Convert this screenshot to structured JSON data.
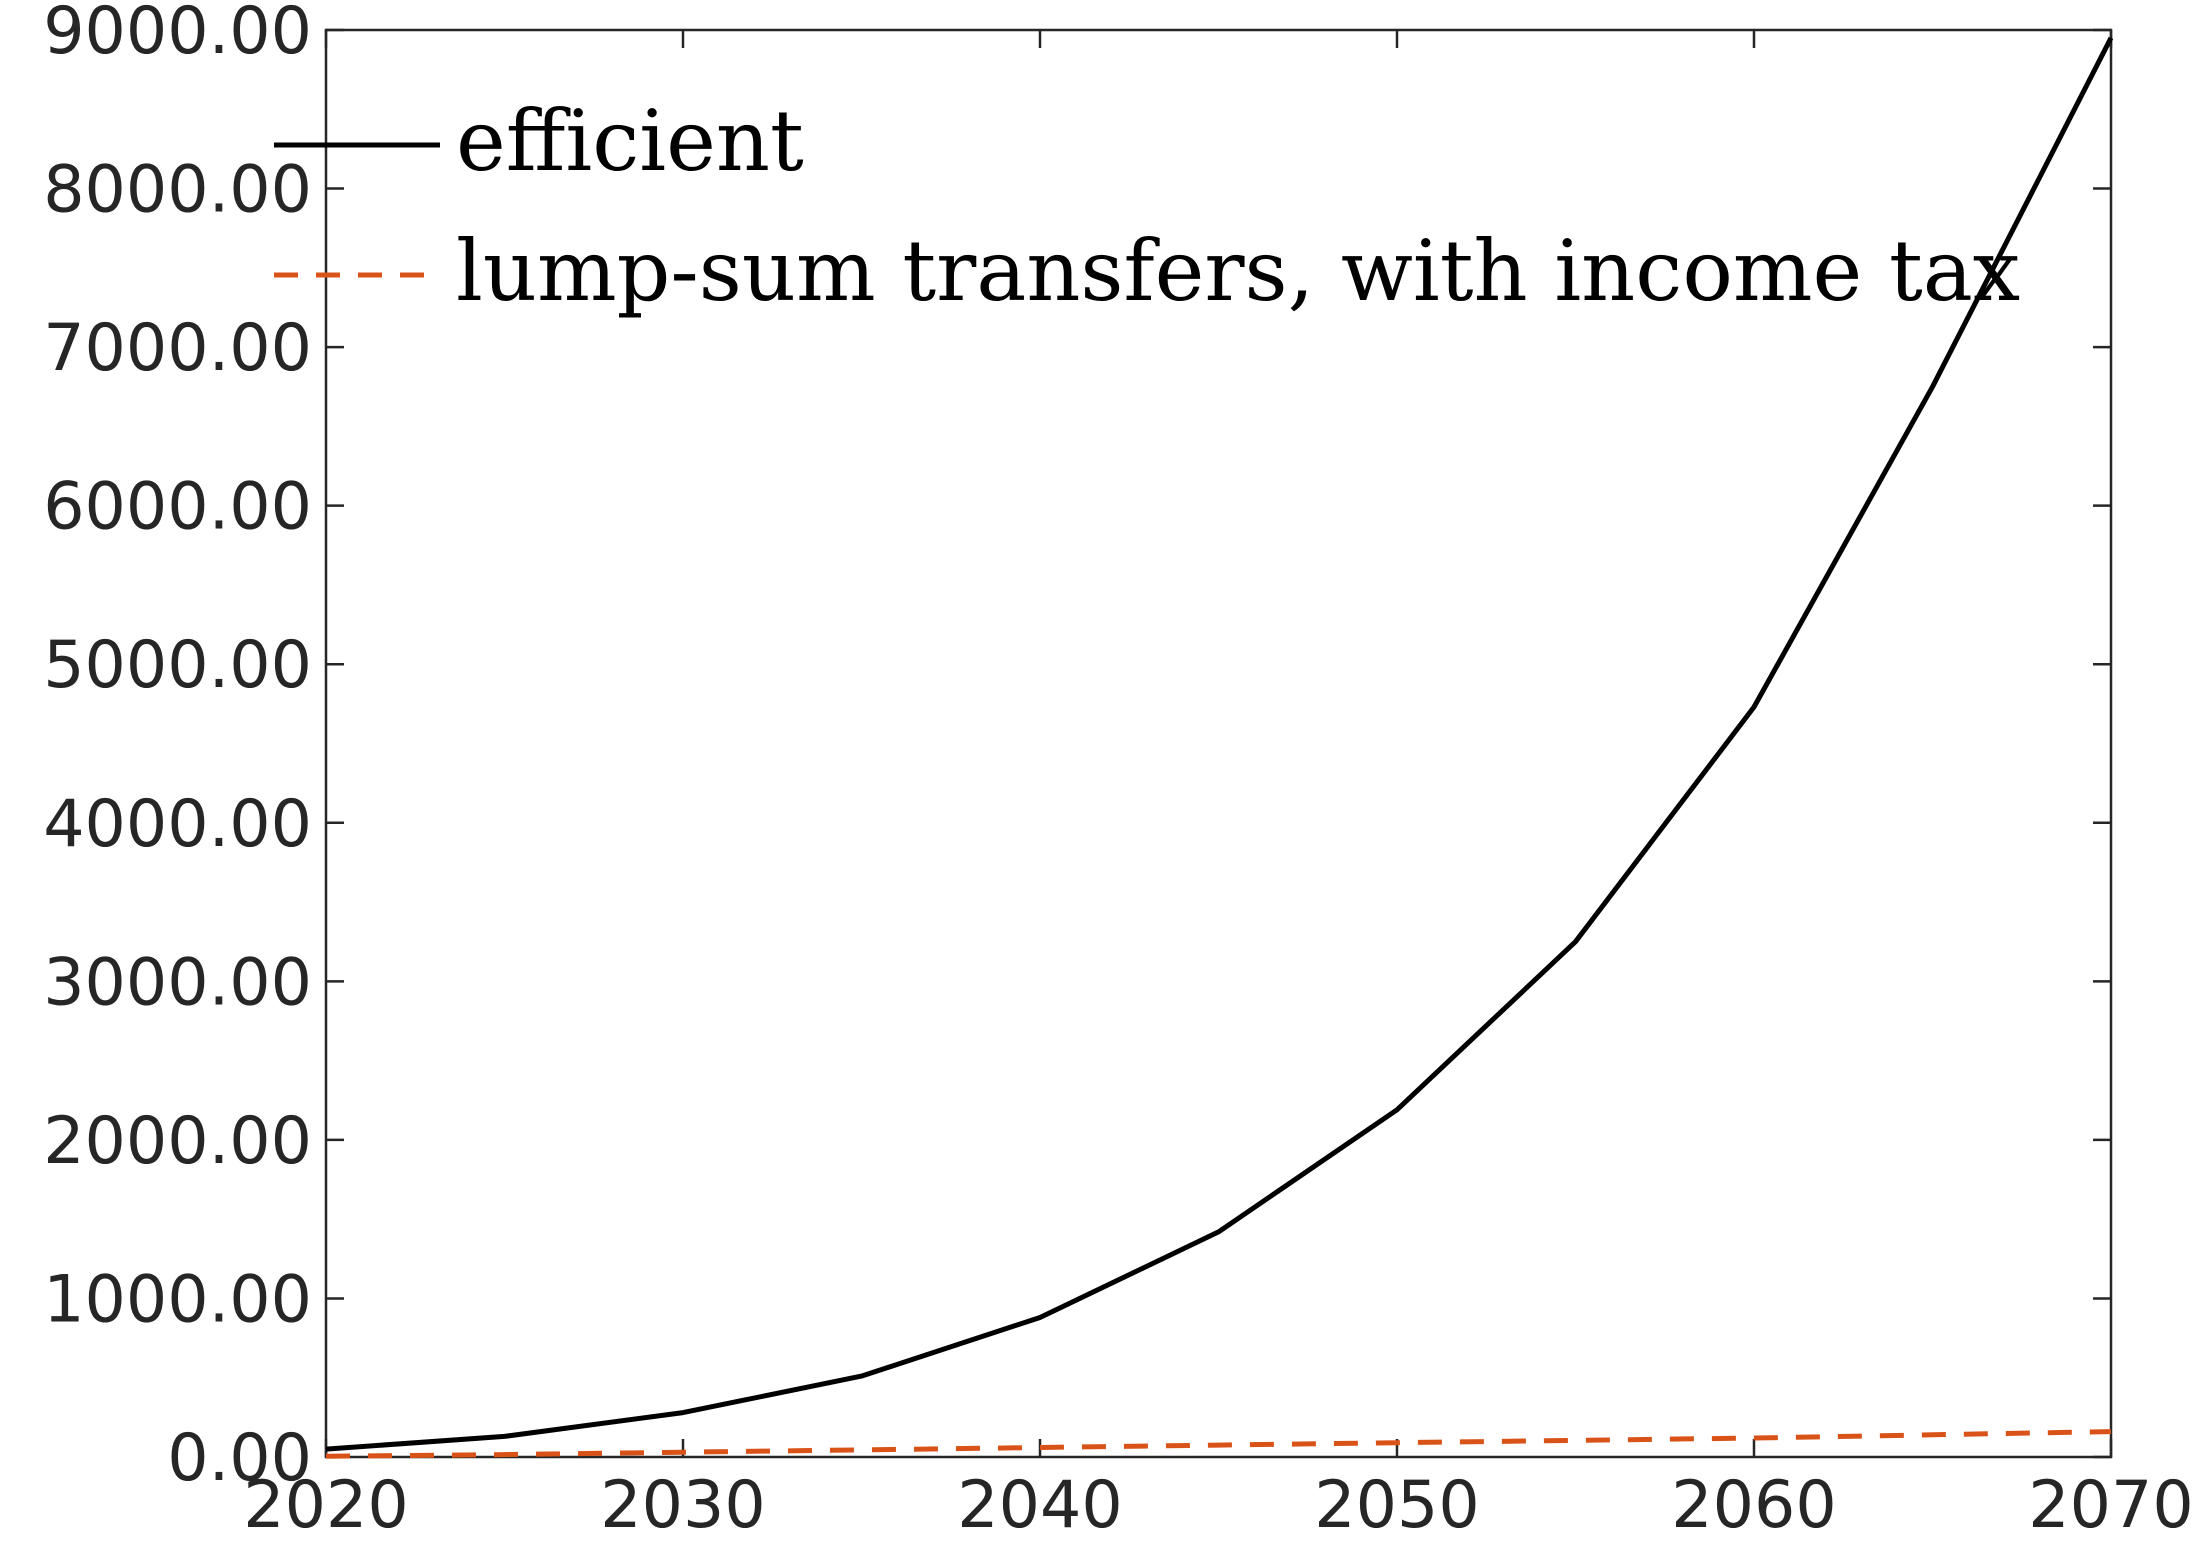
{
  "chart_data": {
    "type": "line",
    "title": "",
    "xlabel": "",
    "ylabel": "",
    "xlim": [
      2020,
      2070
    ],
    "ylim": [
      0,
      9000
    ],
    "grid": false,
    "legend_position": "top-left",
    "x_ticks": [
      2020,
      2030,
      2040,
      2050,
      2060,
      2070
    ],
    "x_tick_labels": [
      "2020",
      "2030",
      "2040",
      "2050",
      "2060",
      "2070"
    ],
    "y_ticks": [
      0,
      1000,
      2000,
      3000,
      4000,
      5000,
      6000,
      7000,
      8000,
      9000
    ],
    "y_tick_labels": [
      "0.00",
      "1000.00",
      "2000.00",
      "3000.00",
      "4000.00",
      "5000.00",
      "6000.00",
      "7000.00",
      "8000.00",
      "9000.00"
    ],
    "x": [
      2020,
      2025,
      2030,
      2035,
      2040,
      2045,
      2050,
      2055,
      2060,
      2065,
      2070
    ],
    "series": [
      {
        "name": "efficient",
        "color": "#000000",
        "style": "solid",
        "values": [
          50,
          130,
          280,
          510,
          880,
          1420,
          2190,
          3250,
          4730,
          6750,
          8950
        ]
      },
      {
        "name": "lump-sum transfers, with income tax",
        "color": "#d95319",
        "style": "dashed",
        "values": [
          5,
          15,
          30,
          45,
          60,
          75,
          90,
          105,
          120,
          140,
          160
        ]
      }
    ]
  }
}
